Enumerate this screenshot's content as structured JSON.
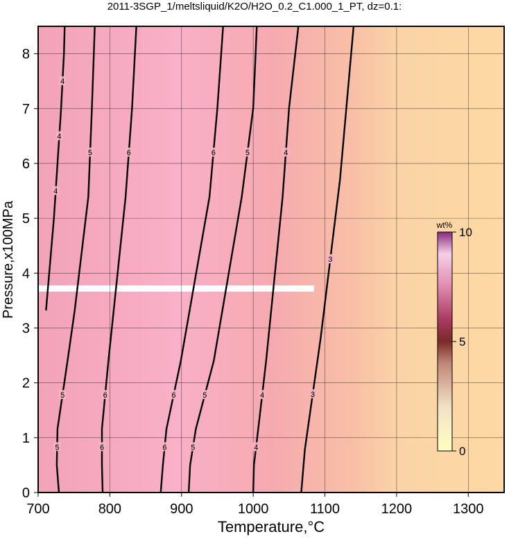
{
  "chart_data": {
    "type": "contour",
    "title": "2011-3SGP_1/meltsliquid/K2O/H2O_0.2_C1.000_1_PT, dz=0.1:",
    "xlabel": "Temperature,°C",
    "ylabel": "Pressure,x100MPa",
    "xlim": [
      700,
      1350
    ],
    "ylim": [
      0,
      8.5
    ],
    "xticks": [
      700,
      800,
      900,
      1000,
      1100,
      1200,
      1300
    ],
    "yticks": [
      0,
      1,
      2,
      3,
      4,
      5,
      6,
      7,
      8
    ],
    "grid": true,
    "series": [
      {
        "name": "4",
        "color": "#000000",
        "x": [
          711,
          722,
          727,
          732,
          736,
          737
        ],
        "y": [
          3.32,
          5.0,
          6.0,
          7.0,
          8.0,
          8.5
        ]
      },
      {
        "name": "5",
        "color": "#000000",
        "x": [
          729,
          726,
          727,
          741,
          751,
          770,
          775,
          779
        ],
        "y": [
          0,
          0.5,
          1.16,
          2.4,
          3.32,
          5.39,
          7.01,
          8.5
        ]
      },
      {
        "name": "6",
        "color": "#000000",
        "x": [
          790,
          789,
          789,
          798,
          822,
          831,
          837
        ],
        "y": [
          0,
          0.5,
          1.16,
          2.4,
          5.39,
          7.01,
          8.5
        ]
      },
      {
        "name": "6",
        "color": "#000000",
        "x": [
          871,
          874,
          879,
          899,
          939,
          950,
          958
        ],
        "y": [
          0,
          0.5,
          1.16,
          2.4,
          5.39,
          7.01,
          8.5
        ]
      },
      {
        "name": "5",
        "color": "#000000",
        "x": [
          910,
          912,
          920,
          945,
          984,
          1000,
          1005
        ],
        "y": [
          0,
          0.5,
          1.16,
          2.4,
          5.39,
          7.01,
          8.5
        ]
      },
      {
        "name": "4",
        "color": "#000000",
        "x": [
          1000,
          1001,
          1007,
          1018,
          1041,
          1050,
          1063
        ],
        "y": [
          0,
          0.5,
          1.16,
          2.4,
          5.39,
          7.01,
          8.5
        ]
      },
      {
        "name": "3",
        "color": "#000000",
        "x": [
          1067,
          1072,
          1094,
          1121,
          1140
        ],
        "y": [
          0,
          0.78,
          2.81,
          5.7,
          8.5
        ]
      }
    ],
    "colorbar": {
      "label": "wt%",
      "clim": [
        0,
        10
      ],
      "ticks": [
        0,
        5,
        10
      ]
    }
  }
}
